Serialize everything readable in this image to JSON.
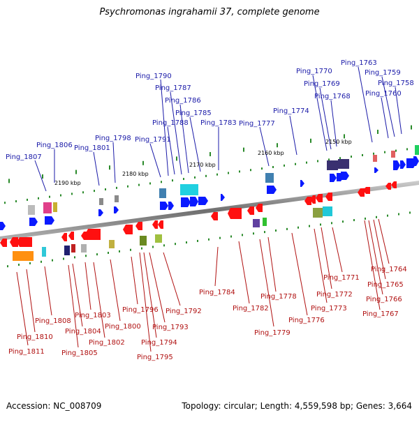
{
  "title": "Psychromonas ingrahamii 37, complete genome",
  "footer": {
    "accession": "Accession: NC_008709",
    "topology": "Topology: circular; Length: 4,559,598 bp; Genes: 3,664"
  },
  "colors": {
    "top_label": "#1a1aa8",
    "bottom_label": "#b01010",
    "forward_gene": "#0a1aff",
    "reverse_gene": "#ff1010",
    "axis": "#808080",
    "tick": "#2a8a2a"
  },
  "scale": {
    "unit": "kbp",
    "labels": [
      "2190 kbp",
      "2180 kbp",
      "2170 kbp",
      "2160 kbp",
      "2150 kbp"
    ]
  },
  "top_genes": [
    "Ping_1807",
    "Ping_1806",
    "Ping_1801",
    "Ping_1798",
    "Ping_1791",
    "Ping_1790",
    "Ping_1788",
    "Ping_1787",
    "Ping_1786",
    "Ping_1785",
    "Ping_1783",
    "Ping_1777",
    "Ping_1774",
    "Ping_1770",
    "Ping_1769",
    "Ping_1768",
    "Ping_1763",
    "Ping_1759",
    "Ping_1760",
    "Ping_1758"
  ],
  "bottom_genes": [
    "Ping_1811",
    "Ping_1810",
    "Ping_1808",
    "Ping_1805",
    "Ping_1804",
    "Ping_1803",
    "Ping_1802",
    "Ping_1800",
    "Ping_1796",
    "Ping_1795",
    "Ping_1794",
    "Ping_1793",
    "Ping_1792",
    "Ping_1784",
    "Ping_1782",
    "Ping_1779",
    "Ping_1778",
    "Ping_1776",
    "Ping_1773",
    "Ping_1772",
    "Ping_1771",
    "Ping_1767",
    "Ping_1766",
    "Ping_1765",
    "Ping_1764"
  ]
}
